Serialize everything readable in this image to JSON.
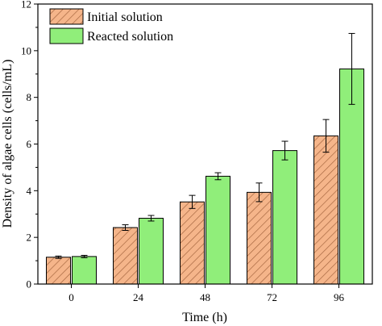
{
  "chart_data": {
    "type": "bar",
    "categories": [
      "0",
      "24",
      "48",
      "72",
      "96"
    ],
    "series": [
      {
        "name": "Initial solution",
        "values": [
          1.15,
          2.42,
          3.52,
          3.93,
          6.35
        ],
        "errors": [
          0.05,
          0.12,
          0.28,
          0.4,
          0.7
        ],
        "color": "#f5b58a",
        "pattern": "diagonal-hatch"
      },
      {
        "name": "Reacted solution",
        "values": [
          1.18,
          2.82,
          4.62,
          5.72,
          9.22
        ],
        "errors": [
          0.05,
          0.12,
          0.15,
          0.4,
          1.52
        ],
        "color": "#90ee7a",
        "pattern": "solid"
      }
    ],
    "title": "",
    "xlabel": "Time (h)",
    "ylabel": "Density of algae cells (cells/mL)",
    "ylim": [
      0,
      12
    ],
    "yticks": [
      0,
      2,
      4,
      6,
      8,
      10,
      12
    ],
    "legend_position": "top-left",
    "grid": false
  }
}
